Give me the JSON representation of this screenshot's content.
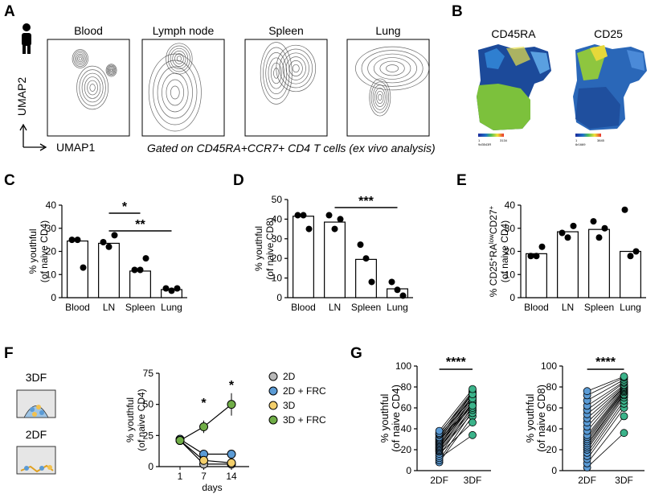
{
  "figure": {
    "panel_letters": [
      "A",
      "B",
      "C",
      "D",
      "E",
      "F",
      "G"
    ],
    "panel_a": {
      "tissues": [
        "Blood",
        "Lymph node",
        "Spleen",
        "Lung"
      ],
      "xaxis": "UMAP1",
      "yaxis": "UMAP2",
      "caption": "Gated on CD45RA+CCR7+ CD4 T cells (ex vivo analysis)"
    },
    "panel_b": {
      "markers": [
        "CD45RA",
        "CD25"
      ],
      "scale_cd45ra": [
        "1",
        "3134",
        "9d3543R"
      ],
      "scale_cd25": [
        "1",
        "3845",
        "6r1669"
      ]
    },
    "panel_f": {
      "culture_labels": [
        "3DF",
        "2DF"
      ]
    }
  },
  "chart_data": [
    {
      "panel": "C",
      "type": "bar",
      "categories": [
        "Blood",
        "LN",
        "Spleen",
        "Lung"
      ],
      "values": [
        24.5,
        23.5,
        11.5,
        3.5
      ],
      "points": [
        [
          25,
          25,
          13
        ],
        [
          24,
          22,
          27
        ],
        [
          12,
          12,
          17
        ],
        [
          4,
          3,
          4
        ]
      ],
      "ylabel": "% youthful (of naive CD4)",
      "ylim": [
        0,
        40
      ],
      "yticks": [
        "0",
        "10",
        "20",
        "30",
        "40"
      ],
      "significance": [
        {
          "from": "LN",
          "to": "Spleen",
          "label": "*"
        },
        {
          "from": "LN",
          "to": "Lung",
          "label": "**"
        }
      ]
    },
    {
      "panel": "D",
      "type": "bar",
      "categories": [
        "Blood",
        "LN",
        "Spleen",
        "Lung"
      ],
      "values": [
        41.5,
        38.5,
        19.5,
        4.5
      ],
      "points": [
        [
          42,
          42,
          35
        ],
        [
          42,
          35,
          40
        ],
        [
          27,
          20,
          8
        ],
        [
          8,
          4,
          1
        ]
      ],
      "ylabel": "% youthful (of naive CD8)",
      "ylim": [
        0,
        50
      ],
      "yticks": [
        "0",
        "10",
        "20",
        "30",
        "40",
        "50"
      ],
      "significance": [
        {
          "from": "LN",
          "to": "Lung",
          "label": "***"
        }
      ]
    },
    {
      "panel": "E",
      "type": "bar",
      "categories": [
        "Blood",
        "LN",
        "Spleen",
        "Lung"
      ],
      "values": [
        19,
        28.5,
        29.5,
        20
      ],
      "points": [
        [
          18,
          18,
          22
        ],
        [
          28,
          26,
          31
        ],
        [
          33,
          26,
          30
        ],
        [
          38,
          18,
          20
        ]
      ],
      "ylabel": "% CD25+RAlowCD27+ (of naive CD4)",
      "ylabel_parts": [
        "% CD25",
        "+",
        "RA",
        "low",
        "CD27",
        "+"
      ],
      "ylabel2": "(of naive CD4)",
      "ylim": [
        0,
        40
      ],
      "yticks": [
        "0",
        "10",
        "20",
        "30",
        "40"
      ],
      "significance": []
    },
    {
      "panel": "F",
      "type": "line",
      "x": [
        1,
        7,
        14
      ],
      "xticks": [
        "1",
        "7",
        "14"
      ],
      "xlabel": "days",
      "ylabel": "% youthful (of naive CD4)",
      "ylim": [
        0,
        75
      ],
      "yticks": [
        "0",
        "25",
        "50",
        "75"
      ],
      "series": [
        {
          "name": "2D",
          "color": "#b8b8b8",
          "values": [
            21,
            2,
            2
          ],
          "err": [
            3,
            1,
            1
          ]
        },
        {
          "name": "2D + FRC",
          "color": "#5b9bd5",
          "values": [
            22,
            10,
            10
          ],
          "err": [
            3,
            2,
            2
          ]
        },
        {
          "name": "3D",
          "color": "#f3cf6b",
          "values": [
            21,
            5,
            3
          ],
          "err": [
            3,
            2,
            2
          ]
        },
        {
          "name": "3D + FRC",
          "color": "#70ad47",
          "values": [
            21,
            32,
            50
          ],
          "err": [
            3,
            5,
            9
          ]
        }
      ],
      "significance": [
        {
          "x": 7,
          "label": "*"
        },
        {
          "x": 14,
          "label": "*"
        }
      ]
    },
    {
      "panel": "G1",
      "type": "scatter",
      "categories": [
        "2DF",
        "3DF"
      ],
      "ylabel": "% youthful (of naive CD4)",
      "ylim": [
        0,
        100
      ],
      "yticks": [
        "0",
        "20",
        "40",
        "60",
        "80",
        "100"
      ],
      "colors": [
        "#5b9bd5",
        "#3bb38a"
      ],
      "pairs": [
        [
          8,
          52
        ],
        [
          10,
          57
        ],
        [
          12,
          34
        ],
        [
          14,
          62
        ],
        [
          16,
          46
        ],
        [
          18,
          55
        ],
        [
          19,
          58
        ],
        [
          20,
          66
        ],
        [
          21,
          60
        ],
        [
          22,
          63
        ],
        [
          23,
          68
        ],
        [
          24,
          65
        ],
        [
          25,
          70
        ],
        [
          26,
          64
        ],
        [
          27,
          72
        ],
        [
          28,
          67
        ],
        [
          29,
          74
        ],
        [
          30,
          62
        ],
        [
          31,
          71
        ],
        [
          32,
          75
        ],
        [
          34,
          69
        ],
        [
          35,
          76
        ],
        [
          36,
          73
        ],
        [
          38,
          78
        ]
      ],
      "significance": [
        {
          "from": "2DF",
          "to": "3DF",
          "label": "****"
        }
      ]
    },
    {
      "panel": "G2",
      "type": "scatter",
      "categories": [
        "2DF",
        "3DF"
      ],
      "ylabel": "% youthful (of naive CD8)",
      "ylim": [
        0,
        100
      ],
      "yticks": [
        "0",
        "20",
        "40",
        "60",
        "80",
        "100"
      ],
      "colors": [
        "#5b9bd5",
        "#3bb38a"
      ],
      "pairs": [
        [
          3,
          36
        ],
        [
          7,
          52
        ],
        [
          11,
          60
        ],
        [
          14,
          64
        ],
        [
          17,
          67
        ],
        [
          20,
          70
        ],
        [
          22,
          72
        ],
        [
          24,
          74
        ],
        [
          26,
          73
        ],
        [
          28,
          75
        ],
        [
          30,
          76
        ],
        [
          32,
          77
        ],
        [
          34,
          78
        ],
        [
          38,
          79
        ],
        [
          42,
          80
        ],
        [
          46,
          80
        ],
        [
          50,
          81
        ],
        [
          54,
          82
        ],
        [
          58,
          84
        ],
        [
          62,
          85
        ],
        [
          67,
          87
        ],
        [
          72,
          89
        ],
        [
          76,
          90
        ]
      ],
      "significance": [
        {
          "from": "2DF",
          "to": "3DF",
          "label": "****"
        }
      ]
    }
  ]
}
